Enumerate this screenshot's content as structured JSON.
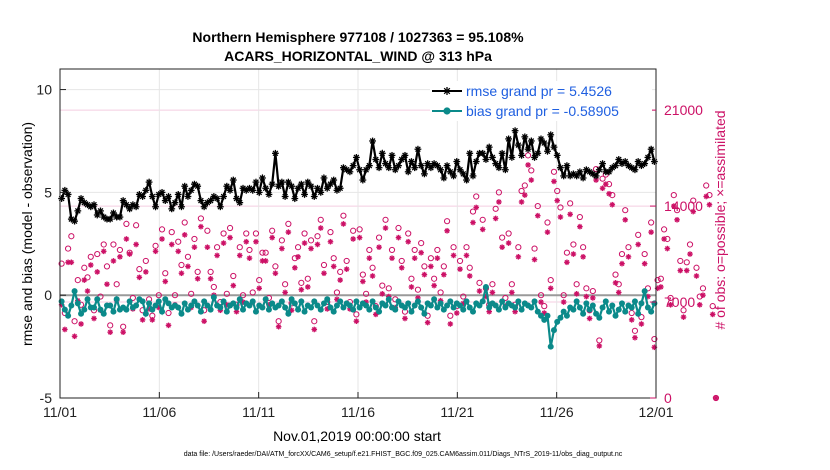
{
  "chart_data": {
    "type": "line",
    "title": "Northern Hemisphere 977108 / 1027363 = 95.108%",
    "subtitle": "ACARS_HORIZONTAL_WIND @ 313 hPa",
    "xlabel": "Nov.01,2019 00:00:00 start",
    "ylabel": "rmse and bias (model - observation)",
    "y2label": "# of obs: o=possible; ×=assimilated",
    "footer": "data file: /Users/raeder/DAI/ATM_forcXX/CAM6_setup/f.e21.FHIST_BGC.f09_025.CAM6assim.011/Diags_NTrS_2019-11/obs_diag_output.nc",
    "xlim": [
      0,
      30
    ],
    "ylim": [
      -5,
      11
    ],
    "y2lim": [
      0,
      24000
    ],
    "xticks": [
      0,
      5,
      10,
      15,
      20,
      25,
      30
    ],
    "xtick_labels": [
      "11/01",
      "11/06",
      "11/11",
      "11/16",
      "11/21",
      "11/26",
      "12/01"
    ],
    "yticks": [
      -5,
      0,
      5,
      10
    ],
    "ytick_labels": [
      "-5",
      "0",
      "5",
      "10"
    ],
    "y2ticks": [
      0,
      7000,
      14000,
      21000
    ],
    "y2tick_labels": [
      "0",
      "7000",
      "14000",
      "21000"
    ],
    "grid": true,
    "legend_position": "top-right",
    "legend": [
      {
        "name": "rmse grand pr = 5.4526",
        "color": "#000000",
        "marker": "star"
      },
      {
        "name": "bias grand pr = -0.58905",
        "color": "#0b8a8a",
        "marker": "circle"
      }
    ],
    "series": [
      {
        "name": "rmse",
        "color": "#000000",
        "marker": "star",
        "values": [
          4.7,
          5.1,
          4.9,
          3.7,
          3.6,
          4.1,
          4.7,
          4.5,
          4.4,
          4.3,
          4.4,
          3.9,
          4.1,
          3.8,
          3.7,
          3.7,
          4.0,
          3.8,
          3.8,
          4.6,
          4.4,
          4.2,
          4.4,
          4.3,
          4.9,
          4.8,
          5.1,
          5.5,
          4.8,
          4.3,
          4.9,
          5.0,
          4.6,
          4.8,
          4.2,
          4.5,
          4.9,
          4.3,
          5.3,
          4.8,
          5.1,
          5.4,
          5.3,
          4.6,
          4.3,
          4.5,
          4.6,
          4.8,
          4.7,
          4.3,
          4.8,
          5.3,
          5.1,
          5.6,
          4.7,
          4.5,
          5.2,
          5.1,
          5.2,
          5.1,
          5.5,
          5.0,
          5.7,
          5.2,
          4.9,
          5.4,
          6.9,
          5.3,
          5.5,
          4.8,
          5.5,
          5.3,
          4.7,
          5.2,
          5.4,
          4.9,
          5.5,
          5.3,
          4.8,
          5.2,
          5.0,
          5.7,
          5.2,
          5.4,
          5.6,
          5.1,
          5.2,
          6.2,
          6.1,
          6.0,
          6.3,
          6.7,
          6.1,
          5.6,
          6.1,
          6.3,
          7.5,
          6.6,
          6.2,
          6.9,
          6.4,
          6.2,
          6.8,
          6.1,
          6.3,
          6.6,
          6.8,
          6.0,
          6.5,
          6.2,
          7.1,
          6.3,
          5.9,
          6.4,
          6.2,
          6.4,
          6.3,
          6.1,
          5.7,
          6.3,
          6.0,
          5.8,
          6.5,
          6.1,
          5.9,
          5.6,
          6.9,
          5.8,
          6.5,
          6.9,
          6.9,
          6.6,
          7.2,
          6.7,
          6.4,
          6.2,
          6.9,
          6.1,
          7.6,
          6.7,
          8.0,
          7.3,
          6.8,
          7.7,
          7.1,
          7.5,
          6.7,
          6.9,
          7.6,
          7.4,
          7.0,
          7.8,
          7.2,
          6.8,
          6.2,
          5.8,
          6.3,
          5.8,
          5.9,
          5.8,
          6.0,
          5.7,
          6.1,
          6.0,
          5.9,
          5.8,
          6.1,
          6.4,
          6.0,
          6.0,
          6.2,
          6.3,
          6.6,
          6.4,
          6.5,
          6.3,
          6.2,
          6.1,
          6.5,
          6.3,
          6.4,
          6.7,
          7.1,
          6.5
        ]
      },
      {
        "name": "bias",
        "color": "#0b8a8a",
        "marker": "circle",
        "values": [
          -0.3,
          -0.7,
          -1.0,
          -0.5,
          0.2,
          -0.4,
          -0.9,
          -0.7,
          -0.2,
          -0.6,
          -0.6,
          -0.2,
          -0.7,
          -0.9,
          -0.5,
          -0.5,
          -0.8,
          -0.2,
          -0.7,
          -0.6,
          -0.7,
          -0.3,
          -0.6,
          -0.5,
          -0.2,
          -0.3,
          -0.9,
          -0.4,
          -0.7,
          -0.5,
          -0.3,
          -0.8,
          -0.2,
          -0.4,
          -0.6,
          -0.5,
          -0.6,
          -0.9,
          -0.4,
          -0.7,
          -0.5,
          -0.3,
          -0.5,
          -0.8,
          -0.3,
          -0.5,
          -0.7,
          -0.1,
          -0.5,
          -0.6,
          -0.3,
          -0.8,
          -0.5,
          -0.4,
          -0.6,
          -0.2,
          -0.7,
          -0.4,
          -0.5,
          -0.3,
          -0.8,
          -0.5,
          -0.6,
          -0.2,
          -0.7,
          -0.4,
          -0.6,
          -0.5,
          -0.3,
          -0.6,
          -0.9,
          -0.2,
          -0.4,
          -0.7,
          -0.3,
          -0.8,
          -0.5,
          -0.6,
          -0.3,
          -0.5,
          -0.7,
          -0.4,
          -0.2,
          -0.6,
          -0.8,
          -0.5,
          -0.3,
          -0.6,
          -0.4,
          -0.5,
          -0.7,
          -0.3,
          -0.6,
          -0.4,
          -0.5,
          -0.7,
          -0.3,
          -0.6,
          -0.8,
          -0.4,
          -0.5,
          -0.2,
          -0.6,
          -0.7,
          -0.3,
          -0.5,
          -0.6,
          -0.4,
          -0.8,
          -0.5,
          -0.3,
          -0.6,
          -0.9,
          -0.4,
          -0.5,
          -0.2,
          -0.6,
          -0.4,
          -0.7,
          -0.5,
          -0.3,
          -0.6,
          -0.4,
          -0.5,
          -0.7,
          -0.3,
          -0.6,
          -0.8,
          -0.4,
          -0.5,
          -0.3,
          0.4,
          -0.6,
          -0.4,
          -0.5,
          -0.7,
          -0.3,
          -0.6,
          -0.4,
          -0.5,
          -0.6,
          -0.3,
          -0.7,
          -0.4,
          -0.5,
          -0.6,
          -0.3,
          -0.8,
          -1.0,
          -1.2,
          -1.0,
          -2.5,
          -1.7,
          -1.3,
          -1.1,
          -0.8,
          -1.0,
          -0.6,
          -0.7,
          -0.3,
          -0.6,
          -0.9,
          -0.4,
          -0.7,
          -0.5,
          -0.9,
          -1.1,
          -0.6,
          -0.3,
          -0.8,
          -0.5,
          -1.0,
          -0.7,
          -0.4,
          -0.8,
          -0.5,
          -0.6,
          -0.3,
          -0.9,
          -0.4,
          0.2,
          -0.6,
          -0.8,
          -0.4
        ]
      },
      {
        "name": "# possible",
        "color": "#cc1166",
        "marker": "circle-open",
        "axis": "right",
        "values": [
          9800,
          6200,
          10900,
          11800,
          5600,
          8600,
          6800,
          9500,
          8800,
          10300,
          6400,
          10500,
          7400,
          11200,
          9600,
          5300,
          11200,
          8300,
          10800,
          5200,
          12700,
          10600,
          7300,
          12600,
          9400,
          6400,
          10000,
          7200,
          6000,
          11100,
          7500,
          12300,
          9100,
          6200,
          12100,
          7500,
          11400,
          9700,
          12800,
          10300,
          7600,
          11600,
          9200,
          13100,
          6400,
          12200,
          9200,
          8100,
          11000,
          7000,
          12000,
          7600,
          12400,
          8900,
          6800,
          11000,
          7500,
          12000,
          10800,
          7700,
          12000,
          8600,
          10600,
          10600,
          7300,
          12200,
          9600,
          5600,
          11500,
          8300,
          12700,
          6900,
          10200,
          11000,
          8400,
          12000,
          8700,
          11500,
          5600,
          11800,
          13000,
          9700,
          7000,
          12100,
          10200,
          7700,
          9200,
          13300,
          10000,
          7000,
          12200,
          6100,
          12300,
          9000,
          7600,
          10800,
          9500,
          6700,
          11700,
          8200,
          13000,
          8000,
          10800,
          7200,
          12400,
          10000,
          6300,
          12000,
          8700,
          10800,
          7900,
          11300,
          9600,
          6000,
          10200,
          8700,
          10800,
          7700,
          9600,
          12900,
          6000,
          11000,
          6700,
          10000,
          7400,
          11000,
          9500,
          13600,
          14700,
          8400,
          13000,
          8000,
          6800,
          8300,
          13800,
          15000,
          11700,
          7300,
          12000,
          8300,
          6800,
          11000,
          15100,
          15500,
          17700,
          16600,
          10900,
          14000,
          7500,
          6700,
          12800,
          8600,
          16500,
          15100,
          13900,
          7500,
          10600,
          14200,
          11200,
          8300,
          13200,
          11000,
          8000,
          6400,
          7800,
          16700,
          4200,
          16000,
          16300,
          15600,
          14800,
          9000,
          8300,
          10500,
          13700,
          11000,
          6200,
          4900,
          11900,
          5900,
          10500,
          8000,
          12800,
          4300,
          8600,
          8700,
          12300,
          11600,
          7300,
          14800,
          13700,
          10000,
          6400,
          9900,
          11200,
          14400,
          9500,
          7400,
          8000,
          15500,
          14800,
          6700,
          0
        ]
      },
      {
        "name": "# assimilated",
        "color": "#cc1166",
        "marker": "asterisk",
        "axis": "right",
        "values": [
          6800,
          5000,
          9900,
          9900,
          4500,
          7100,
          5400,
          8600,
          7800,
          9700,
          5800,
          9200,
          6400,
          10700,
          8300,
          4800,
          10000,
          7100,
          10300,
          4800,
          11600,
          10500,
          6500,
          11200,
          8800,
          5700,
          9200,
          6500,
          5700,
          10700,
          6600,
          11600,
          8500,
          5300,
          11200,
          6800,
          10700,
          9100,
          11900,
          9600,
          6600,
          11000,
          8700,
          12500,
          5600,
          11000,
          8700,
          7500,
          10400,
          6400,
          11300,
          6800,
          11700,
          8200,
          6300,
          10400,
          7000,
          11400,
          10200,
          7000,
          11400,
          8000,
          10000,
          10000,
          6800,
          11700,
          9100,
          5200,
          10900,
          7700,
          12100,
          6400,
          9500,
          10300,
          7900,
          11300,
          8100,
          10900,
          5000,
          11200,
          12400,
          9100,
          6500,
          11400,
          9600,
          7200,
          8600,
          12700,
          9400,
          6500,
          11600,
          5600,
          11700,
          8500,
          7000,
          10200,
          8900,
          6100,
          11000,
          7600,
          12400,
          7400,
          10200,
          6600,
          11700,
          9500,
          5800,
          11400,
          8100,
          10200,
          7300,
          10600,
          9000,
          5500,
          9600,
          8200,
          10200,
          7100,
          9000,
          12200,
          5400,
          10400,
          6200,
          9400,
          6900,
          10400,
          8900,
          12800,
          13900,
          7800,
          12300,
          7400,
          6300,
          7700,
          13100,
          14300,
          11000,
          6700,
          11300,
          7700,
          6300,
          10300,
          14300,
          14800,
          17000,
          15900,
          10100,
          13300,
          7000,
          6200,
          12100,
          8000,
          15800,
          14400,
          13200,
          7000,
          9900,
          13400,
          10500,
          7600,
          12500,
          10300,
          7400,
          5800,
          7300,
          15900,
          3800,
          15300,
          15600,
          14900,
          14100,
          8400,
          7700,
          9800,
          13000,
          10300,
          5700,
          4400,
          11200,
          5400,
          9800,
          7400,
          12100,
          3700,
          8000,
          8100,
          11600,
          10900,
          6800,
          14000,
          13000,
          9300,
          5900,
          9300,
          10500,
          13600,
          8900,
          6800,
          7500,
          14700,
          14100,
          6100,
          0
        ]
      }
    ]
  }
}
